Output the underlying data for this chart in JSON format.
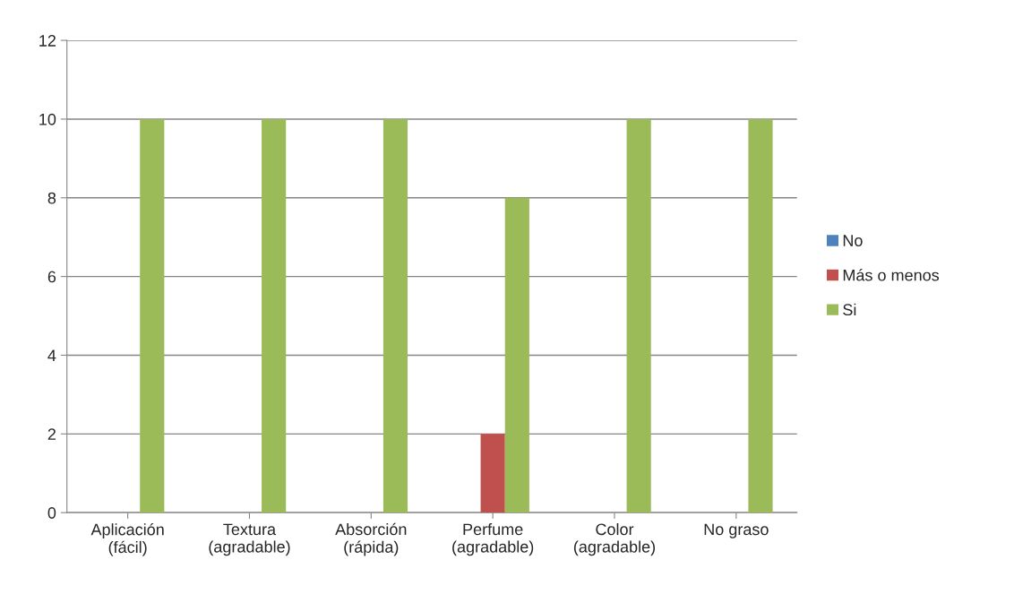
{
  "chart_data": {
    "type": "bar",
    "categories": [
      "Aplicación\n(fácil)",
      "Textura\n(agradable)",
      "Absorción\n(rápida)",
      "Perfume\n(agradable)",
      "Color\n(agradable)",
      "No graso"
    ],
    "series": [
      {
        "name": "No",
        "color": "#4f81bd",
        "values": [
          0,
          0,
          0,
          0,
          0,
          0
        ]
      },
      {
        "name": "Más o menos",
        "color": "#c0504d",
        "values": [
          0,
          0,
          0,
          2,
          0,
          0
        ]
      },
      {
        "name": "Si",
        "color": "#9bbb59",
        "values": [
          10,
          10,
          10,
          8,
          10,
          10
        ]
      }
    ],
    "ylim": [
      0,
      12
    ],
    "yticks": [
      0,
      2,
      4,
      6,
      8,
      10,
      12
    ],
    "grid": "y",
    "legend": "right"
  }
}
